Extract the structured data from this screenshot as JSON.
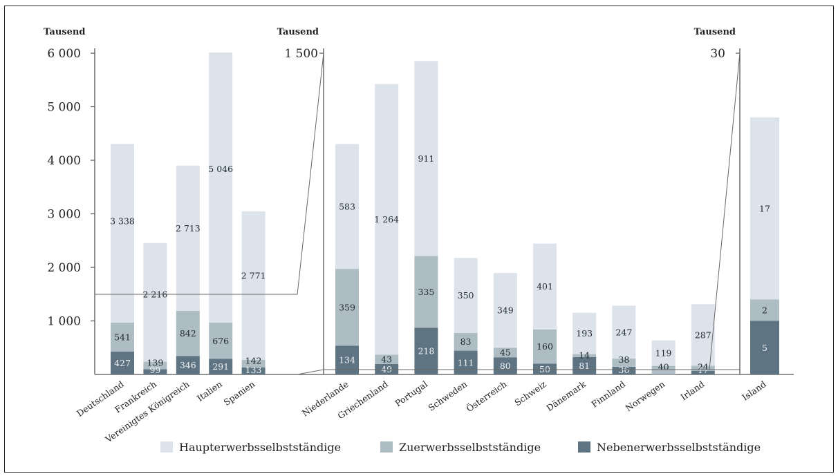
{
  "colors": {
    "Haupterwerbsselbstständige": "#dde3ea",
    "Zuerwerbsselbstständige": "#aebcc4",
    "Nebenerwerbsselbstständige": "#5f7482",
    "axis": "#555555",
    "connector": "#666666"
  },
  "chart_data": [
    {
      "type": "bar",
      "stacked": true,
      "unit_label": "Tausend",
      "ylim": [
        0,
        6000
      ],
      "yticks": [
        1000,
        2000,
        3000,
        4000,
        5000,
        6000
      ],
      "ytick_labels": [
        "1 000",
        "2 000",
        "3 000",
        "4 000",
        "5 000",
        "6 000"
      ],
      "categories": [
        "Deutschland",
        "Frankreich",
        "Vereinigtes Königreich",
        "Italien",
        "Spanien"
      ],
      "series": [
        {
          "name": "Nebenerwerbsselbstständige",
          "values": [
            427,
            99,
            346,
            291,
            133
          ],
          "labels": [
            "427",
            "99",
            "346",
            "291",
            "133"
          ]
        },
        {
          "name": "Zuerwerbsselbstständige",
          "values": [
            541,
            139,
            842,
            676,
            142
          ],
          "labels": [
            "541",
            "139",
            "842",
            "676",
            "142"
          ]
        },
        {
          "name": "Haupterwerbsselbstständige",
          "values": [
            3338,
            2216,
            2713,
            5046,
            2771
          ],
          "labels": [
            "3 338",
            "2 216",
            "2 713",
            "5 046",
            "2 771"
          ]
        }
      ]
    },
    {
      "type": "bar",
      "stacked": true,
      "unit_label": "Tausend",
      "ylim": [
        0,
        1500
      ],
      "yticks": [
        1500
      ],
      "ytick_labels": [
        "1 500"
      ],
      "categories": [
        "Niederlande",
        "Griechenland",
        "Portugal",
        "Schweden",
        "Österreich",
        "Schweiz",
        "Dänemark",
        "Finnland",
        "Norwegen",
        "Irland"
      ],
      "series": [
        {
          "name": "Nebenerwerbsselbstständige",
          "values": [
            134,
            49,
            218,
            111,
            80,
            50,
            81,
            36,
            0,
            17
          ],
          "labels": [
            "134",
            "49",
            "218",
            "111",
            "80",
            "50",
            "81",
            "36",
            "",
            "17"
          ]
        },
        {
          "name": "Zuerwerbsselbstständige",
          "values": [
            359,
            43,
            335,
            83,
            45,
            160,
            14,
            38,
            40,
            24
          ],
          "labels": [
            "359",
            "43",
            "335",
            "83",
            "45",
            "160",
            "14",
            "38",
            "40",
            "24"
          ]
        },
        {
          "name": "Haupterwerbsselbstständige",
          "values": [
            583,
            1264,
            911,
            350,
            349,
            401,
            193,
            247,
            119,
            287
          ],
          "labels": [
            "583",
            "1 264",
            "911",
            "350",
            "349",
            "401",
            "193",
            "247",
            "119",
            "287"
          ]
        }
      ]
    },
    {
      "type": "bar",
      "stacked": true,
      "unit_label": "Tausend",
      "ylim": [
        0,
        30
      ],
      "yticks": [
        30
      ],
      "ytick_labels": [
        "30"
      ],
      "categories": [
        "Island"
      ],
      "series": [
        {
          "name": "Nebenerwerbsselbstständige",
          "values": [
            5
          ],
          "labels": [
            "5"
          ]
        },
        {
          "name": "Zuerwerbsselbstständige",
          "values": [
            2
          ],
          "labels": [
            "2"
          ]
        },
        {
          "name": "Haupterwerbsselbstständige",
          "values": [
            17
          ],
          "labels": [
            "17"
          ]
        }
      ]
    }
  ],
  "legend": {
    "entries": [
      "Haupterwerbsselbstständige",
      "Zuerwerbsselbstständige",
      "Nebenerwerbsselbstständige"
    ],
    "placement": "bottom"
  }
}
